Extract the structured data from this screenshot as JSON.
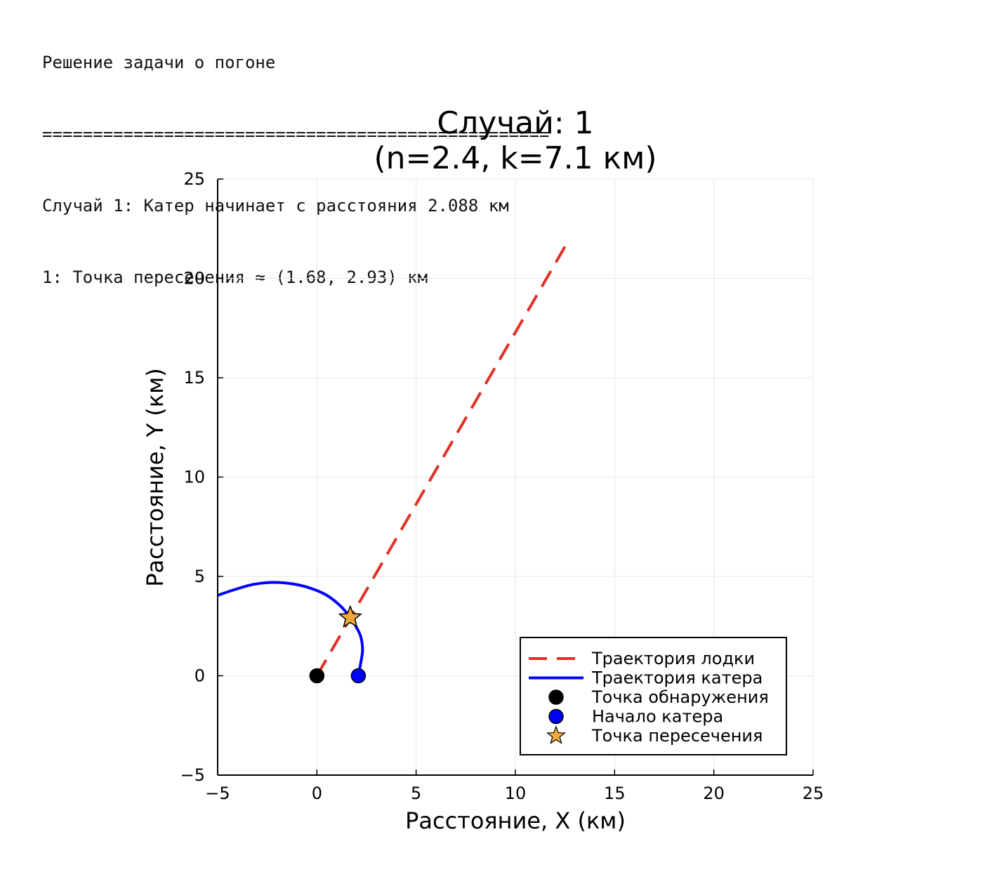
{
  "console": {
    "lines": [
      "Решение задачи о погоне",
      "==================================================",
      "Случай 1: Катер начинает с расстояния 2.088 км",
      "1: Точка пересечения ≈ (1.68, 2.93) км"
    ]
  },
  "chart_data": {
    "type": "line",
    "title_line1": "Случай: 1",
    "title_line2": "(n=2.4, k=7.1 км)",
    "xlabel": "Расстояние, X (км)",
    "ylabel": "Расстояние, Y (км)",
    "xlim": [
      -5,
      25
    ],
    "ylim": [
      -5,
      25
    ],
    "xticks": [
      -5,
      0,
      5,
      10,
      15,
      20,
      25
    ],
    "yticks": [
      -5,
      0,
      5,
      10,
      15,
      20,
      25
    ],
    "xtick_labels": [
      "−5",
      "0",
      "5",
      "10",
      "15",
      "20",
      "25"
    ],
    "ytick_labels": [
      "−5",
      "0",
      "5",
      "10",
      "15",
      "20",
      "25"
    ],
    "grid": true,
    "legend_position": "bottom-right",
    "series": [
      {
        "name": "Траектория лодки",
        "kind": "line",
        "style": "dashed",
        "color": "#e03127",
        "x": [
          0,
          12.5
        ],
        "y": [
          0,
          21.6
        ]
      },
      {
        "name": "Траектория катера",
        "kind": "line",
        "style": "solid",
        "color": "#0000ff",
        "x": [
          2.088,
          2.2,
          2.3,
          2.2,
          1.9,
          1.68,
          1.2,
          0.5,
          -0.3,
          -1.2,
          -2.2,
          -3.2,
          -4.1,
          -5.0
        ],
        "y": [
          0,
          0.6,
          1.3,
          2.0,
          2.6,
          2.93,
          3.5,
          4.05,
          4.4,
          4.62,
          4.7,
          4.6,
          4.35,
          4.05
        ]
      },
      {
        "name": "Точка обнаружения",
        "kind": "marker",
        "marker": "circle",
        "color": "#000000",
        "x": [
          0
        ],
        "y": [
          0
        ]
      },
      {
        "name": "Начало катера",
        "kind": "marker",
        "marker": "circle",
        "color": "#0000ff",
        "x": [
          2.088
        ],
        "y": [
          0
        ]
      },
      {
        "name": "Точка пересечения",
        "kind": "marker",
        "marker": "star",
        "color": "#f0a83a",
        "x": [
          1.68
        ],
        "y": [
          2.93
        ]
      }
    ]
  }
}
